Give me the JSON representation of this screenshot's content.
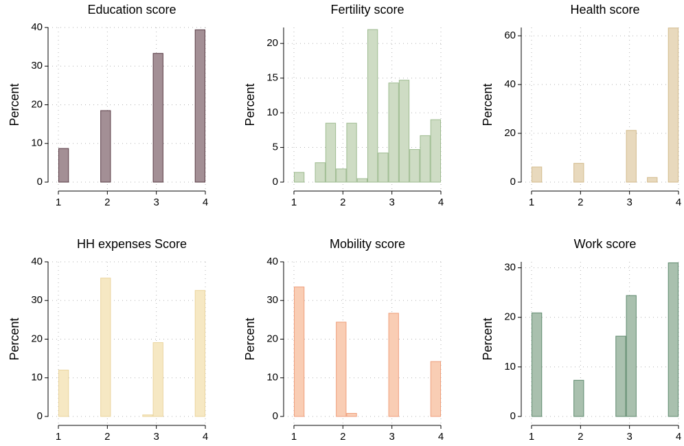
{
  "chart_data": [
    {
      "type": "histogram",
      "title": "Education score",
      "y_label": "Percent",
      "bins": [
        1,
        1.2143,
        1.4286,
        1.6429,
        1.8571,
        2.0714,
        2.2857,
        2.5,
        2.7143,
        2.9286,
        3.1429,
        3.3571,
        3.5714,
        3.7857,
        4
      ],
      "values": [
        8.7,
        0,
        0,
        0,
        18.5,
        0,
        0,
        0,
        0,
        33.3,
        0,
        0,
        0,
        39.4
      ],
      "color": "#a38f95",
      "edgecolor": "#5a3c45",
      "xlim": [
        1,
        4
      ],
      "ylim": [
        0,
        40
      ],
      "xticks": [
        1,
        2,
        3,
        4
      ],
      "yticks": [
        0,
        10,
        20,
        30,
        40
      ],
      "grid": true
    },
    {
      "type": "histogram",
      "title": "Fertility score",
      "y_label": "Percent",
      "bins": [
        1,
        1.2143,
        1.4286,
        1.6429,
        1.8571,
        2.0714,
        2.2857,
        2.5,
        2.7143,
        2.9286,
        3.1429,
        3.3571,
        3.5714,
        3.7857,
        4
      ],
      "values": [
        1.4,
        0,
        2.8,
        8.5,
        1.9,
        8.5,
        0.5,
        22,
        4.2,
        14.3,
        14.7,
        4.7,
        6.7,
        9.0
      ],
      "color": "#cedcc4",
      "edgecolor": "#9dbb8f",
      "xlim": [
        1,
        4
      ],
      "ylim": [
        0,
        22.3
      ],
      "xticks": [
        1,
        2,
        3,
        4
      ],
      "yticks": [
        0,
        5,
        10,
        15,
        20
      ],
      "grid": true
    },
    {
      "type": "histogram",
      "title": "Health score",
      "y_label": "Percent",
      "bins": [
        1,
        1.2143,
        1.4286,
        1.6429,
        1.8571,
        2.0714,
        2.2857,
        2.5,
        2.7143,
        2.9286,
        3.1429,
        3.3571,
        3.5714,
        3.7857,
        4
      ],
      "values": [
        6.2,
        0,
        0,
        0,
        7.7,
        0,
        0,
        0,
        0,
        21.2,
        0,
        1.9,
        0,
        63.2
      ],
      "color": "#e8d9bd",
      "edgecolor": "#d3bb8d",
      "xlim": [
        1,
        4
      ],
      "ylim": [
        0,
        63.4
      ],
      "xticks": [
        1,
        2,
        3,
        4
      ],
      "yticks": [
        0,
        20,
        40,
        60
      ],
      "grid": true
    },
    {
      "type": "histogram",
      "title": "HH expenses Score",
      "y_label": "Percent",
      "bins": [
        1,
        1.2143,
        1.4286,
        1.6429,
        1.8571,
        2.0714,
        2.2857,
        2.5,
        2.7143,
        2.9286,
        3.1429,
        3.3571,
        3.5714,
        3.7857,
        4
      ],
      "values": [
        12,
        0,
        0,
        0,
        35.8,
        0,
        0,
        0,
        0.4,
        19.1,
        0,
        0,
        0,
        32.6
      ],
      "color": "#f6e8c3",
      "edgecolor": "#ebd59e",
      "xlim": [
        1,
        4
      ],
      "ylim": [
        0,
        40
      ],
      "xticks": [
        1,
        2,
        3,
        4
      ],
      "yticks": [
        0,
        10,
        20,
        30,
        40
      ],
      "grid": true
    },
    {
      "type": "histogram",
      "title": "Mobility score",
      "y_label": "Percent",
      "bins": [
        1,
        1.2143,
        1.4286,
        1.6429,
        1.8571,
        2.0714,
        2.2857,
        2.5,
        2.7143,
        2.9286,
        3.1429,
        3.3571,
        3.5714,
        3.7857,
        4
      ],
      "values": [
        33.5,
        0,
        0,
        0,
        24.4,
        0.8,
        0,
        0,
        0,
        26.7,
        0,
        0,
        0,
        14.2
      ],
      "color": "#f9cdb4",
      "edgecolor": "#ef9f7c",
      "xlim": [
        1,
        4
      ],
      "ylim": [
        0,
        40
      ],
      "xticks": [
        1,
        2,
        3,
        4
      ],
      "yticks": [
        0,
        10,
        20,
        30,
        40
      ],
      "grid": true
    },
    {
      "type": "histogram",
      "title": "Work score",
      "y_label": "Percent",
      "bins": [
        1,
        1.2143,
        1.4286,
        1.6429,
        1.8571,
        2.0714,
        2.2857,
        2.5,
        2.7143,
        2.9286,
        3.1429,
        3.3571,
        3.5714,
        3.7857,
        4
      ],
      "values": [
        20.9,
        0,
        0,
        0,
        7.3,
        0,
        0,
        0,
        16.2,
        24.4,
        0,
        0,
        0,
        31
      ],
      "color": "#a9c0ae",
      "edgecolor": "#5f8a6e",
      "xlim": [
        1,
        4
      ],
      "ylim": [
        0,
        31.2
      ],
      "xticks": [
        1,
        2,
        3,
        4
      ],
      "yticks": [
        0,
        10,
        20,
        30
      ],
      "grid": true
    }
  ]
}
